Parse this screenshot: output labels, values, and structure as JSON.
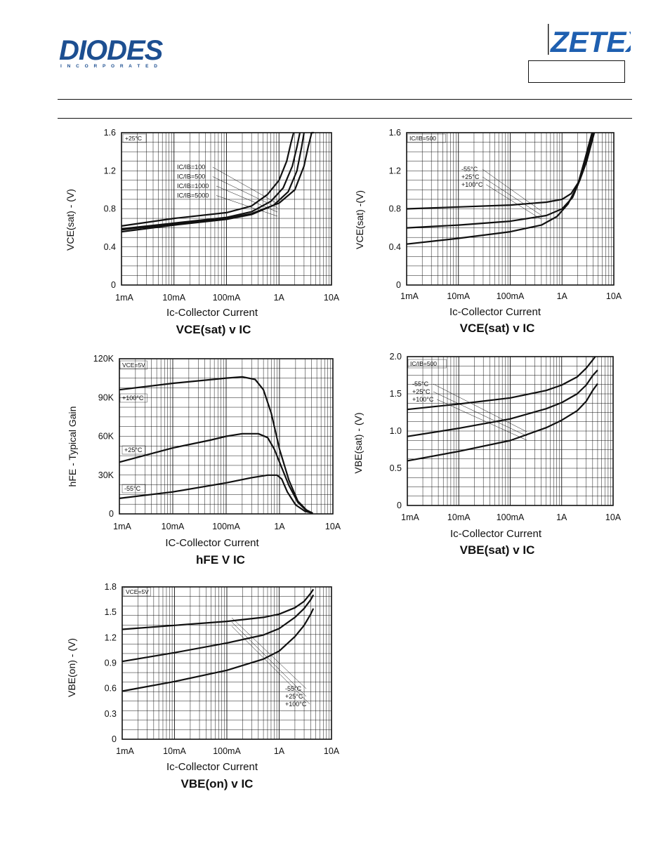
{
  "header": {
    "brand_left": "DIODES",
    "brand_left_sub": "I N C O R P O R A T E D",
    "brand_right": "ZETEX",
    "part_box": ""
  },
  "colors": {
    "ink": "#111111",
    "grid": "#111111",
    "zetex_blue": "#1e5fb0",
    "diodes_blue": "#1d4f91"
  },
  "chart_data": [
    {
      "id": "vcesat_ratio",
      "type": "line",
      "xscale": "log",
      "xlim": [
        "1mA",
        "10A"
      ],
      "xticks": [
        "1mA",
        "10mA",
        "100mA",
        "1A",
        "10A"
      ],
      "ylim": [
        0,
        1.6
      ],
      "yticks": [
        "0",
        "0.4",
        "0.8",
        "1.2",
        "1.6"
      ],
      "xlabel": "Ic-Collector Current",
      "ylabel": "VCE(sat) - (V)",
      "title": "VCE(sat) v IC",
      "annotation": "+25°C",
      "legend": [
        "IC/IB=100",
        "IC/IB=500",
        "IC/IB=1000",
        "IC/IB=5000"
      ],
      "grid": true,
      "series": [
        {
          "name": "IC/IB=100",
          "x": [
            0.001,
            0.01,
            0.1,
            0.3,
            1,
            2,
            3,
            3.6,
            4.2,
            4.6
          ],
          "y": [
            0.58,
            0.64,
            0.7,
            0.75,
            0.86,
            1.0,
            1.25,
            1.45,
            1.6,
            1.7
          ]
        },
        {
          "name": "IC/IB=500",
          "x": [
            0.001,
            0.01,
            0.1,
            0.3,
            0.8,
            1.5,
            2.2,
            2.7,
            3.0
          ],
          "y": [
            0.56,
            0.63,
            0.69,
            0.74,
            0.84,
            0.98,
            1.2,
            1.45,
            1.6
          ]
        },
        {
          "name": "IC/IB=1000",
          "x": [
            0.001,
            0.01,
            0.1,
            0.3,
            0.7,
            1.2,
            1.8,
            2.2,
            2.5
          ],
          "y": [
            0.59,
            0.65,
            0.71,
            0.77,
            0.88,
            1.02,
            1.25,
            1.45,
            1.6
          ]
        },
        {
          "name": "IC/IB=5000",
          "x": [
            0.001,
            0.01,
            0.1,
            0.3,
            0.6,
            1.0,
            1.4,
            1.7,
            1.9
          ],
          "y": [
            0.62,
            0.7,
            0.76,
            0.83,
            0.95,
            1.1,
            1.3,
            1.5,
            1.6
          ]
        }
      ]
    },
    {
      "id": "vcesat_temp",
      "type": "line",
      "xscale": "log",
      "xlim": [
        "1mA",
        "10A"
      ],
      "xticks": [
        "1mA",
        "10mA",
        "100mA",
        "1A",
        "10A"
      ],
      "ylim": [
        0,
        1.6
      ],
      "yticks": [
        "0",
        "0.4",
        "0.8",
        "1.2",
        "1.6"
      ],
      "xlabel": "Ic-Collector Current",
      "ylabel": "VCE(sat) -(V)",
      "title": "VCE(sat) v IC",
      "annotation": "IC/IB=500",
      "legend": [
        "-55°C",
        "+25°C",
        "+100°C"
      ],
      "grid": true,
      "series": [
        {
          "name": "-55°C",
          "x": [
            0.001,
            0.01,
            0.1,
            0.5,
            1,
            1.5,
            2.2,
            3,
            4.2
          ],
          "y": [
            0.8,
            0.82,
            0.84,
            0.87,
            0.9,
            0.96,
            1.1,
            1.3,
            1.6
          ]
        },
        {
          "name": "+25°C",
          "x": [
            0.001,
            0.01,
            0.1,
            0.5,
            1,
            1.6,
            2.2,
            3,
            4.0
          ],
          "y": [
            0.6,
            0.63,
            0.67,
            0.73,
            0.8,
            0.92,
            1.1,
            1.35,
            1.6
          ]
        },
        {
          "name": "+100°C",
          "x": [
            0.001,
            0.01,
            0.1,
            0.4,
            0.8,
            1.3,
            2,
            2.8,
            3.8
          ],
          "y": [
            0.43,
            0.49,
            0.56,
            0.63,
            0.72,
            0.85,
            1.05,
            1.33,
            1.6
          ]
        }
      ]
    },
    {
      "id": "hfe",
      "type": "line",
      "xscale": "log",
      "xlim": [
        "1mA",
        "10A"
      ],
      "xticks": [
        "1mA",
        "10mA",
        "100mA",
        "1A",
        "10A"
      ],
      "ylim": [
        0,
        120000
      ],
      "yticks": [
        "0",
        "30K",
        "60K",
        "90K",
        "120K"
      ],
      "xlabel": "IC-Collector Current",
      "ylabel": "hFE - Typical Gain",
      "title": "hFE V IC",
      "annotation": "VCE=5V",
      "legend": [
        "+100°C",
        "+25°C",
        "-55°C"
      ],
      "grid": true,
      "series": [
        {
          "name": "+100°C",
          "x": [
            0.001,
            0.01,
            0.1,
            0.2,
            0.35,
            0.5,
            0.7,
            1,
            1.5,
            2.2,
            3.2,
            4.2
          ],
          "y": [
            96000,
            101000,
            105000,
            106000,
            104000,
            96000,
            78000,
            50000,
            26000,
            10000,
            3000,
            500
          ]
        },
        {
          "name": "+25°C",
          "x": [
            0.001,
            0.01,
            0.05,
            0.1,
            0.2,
            0.4,
            0.6,
            0.8,
            1,
            1.5,
            2.2,
            3.2,
            4.2
          ],
          "y": [
            40000,
            51000,
            57000,
            60000,
            62000,
            62000,
            59000,
            50000,
            40000,
            22000,
            9000,
            2500,
            500
          ]
        },
        {
          "name": "-55°C",
          "x": [
            0.001,
            0.01,
            0.1,
            0.3,
            0.6,
            0.9,
            1.1,
            1.4,
            2,
            3,
            4.2
          ],
          "y": [
            12000,
            17000,
            24000,
            28000,
            30000,
            30000,
            27000,
            17000,
            7000,
            2000,
            500
          ]
        }
      ]
    },
    {
      "id": "vbesat",
      "type": "line",
      "xscale": "log",
      "xlim": [
        "1mA",
        "10A"
      ],
      "xticks": [
        "1mA",
        "10mA",
        "100mA",
        "1A",
        "10A"
      ],
      "ylim": [
        0,
        2.2
      ],
      "yticks": [
        "0",
        "0.5",
        "1.0",
        "1.5",
        "2.0"
      ],
      "xlabel": "Ic-Collector Current",
      "ylabel": "VBE(sat) - (V)",
      "title": "VBE(sat) v IC",
      "annotation": "IC/IB=500",
      "legend": [
        "-55°C",
        "+25°C",
        "+100°C"
      ],
      "grid": true,
      "series": [
        {
          "name": "-55°C",
          "x": [
            0.001,
            0.01,
            0.1,
            0.5,
            1,
            2,
            3,
            4,
            4.5
          ],
          "y": [
            1.42,
            1.5,
            1.59,
            1.7,
            1.78,
            1.9,
            2.03,
            2.15,
            2.2
          ]
        },
        {
          "name": "+25°C",
          "x": [
            0.001,
            0.01,
            0.1,
            0.5,
            1,
            2,
            3,
            4,
            5
          ],
          "y": [
            1.02,
            1.14,
            1.28,
            1.43,
            1.52,
            1.65,
            1.78,
            1.92,
            2.0
          ]
        },
        {
          "name": "+100°C",
          "x": [
            0.001,
            0.01,
            0.1,
            0.5,
            1,
            2,
            3,
            4,
            5
          ],
          "y": [
            0.66,
            0.8,
            0.96,
            1.15,
            1.26,
            1.4,
            1.54,
            1.7,
            1.8
          ]
        }
      ]
    },
    {
      "id": "vbeon",
      "type": "line",
      "xscale": "log",
      "xlim": [
        "1mA",
        "10A"
      ],
      "xticks": [
        "1mA",
        "10mA",
        "100mA",
        "1A",
        "10A"
      ],
      "ylim": [
        0,
        1.9
      ],
      "yticks": [
        "0",
        "0.3",
        "0.6",
        "0.9",
        "1.2",
        "1.5",
        "1.8"
      ],
      "xlabel": "Ic-Collector Current",
      "ylabel": "VBE(on) - (V)",
      "title": "VBE(on) v IC",
      "annotation": "VCE=5V",
      "legend": [
        "-55°C",
        "+25°C",
        "+100°C"
      ],
      "grid": true,
      "series": [
        {
          "name": "-55°C",
          "x": [
            0.001,
            0.01,
            0.1,
            0.5,
            1,
            2,
            3,
            4,
            4.5
          ],
          "y": [
            1.37,
            1.42,
            1.47,
            1.52,
            1.56,
            1.64,
            1.72,
            1.82,
            1.87
          ]
        },
        {
          "name": "+25°C",
          "x": [
            0.001,
            0.01,
            0.1,
            0.5,
            1,
            2,
            3,
            4,
            4.5
          ],
          "y": [
            0.97,
            1.08,
            1.2,
            1.3,
            1.38,
            1.52,
            1.63,
            1.74,
            1.8
          ]
        },
        {
          "name": "+100°C",
          "x": [
            0.001,
            0.01,
            0.1,
            0.5,
            1,
            2,
            3,
            4,
            4.5
          ],
          "y": [
            0.6,
            0.72,
            0.86,
            1.0,
            1.1,
            1.28,
            1.42,
            1.56,
            1.63
          ]
        }
      ]
    }
  ]
}
